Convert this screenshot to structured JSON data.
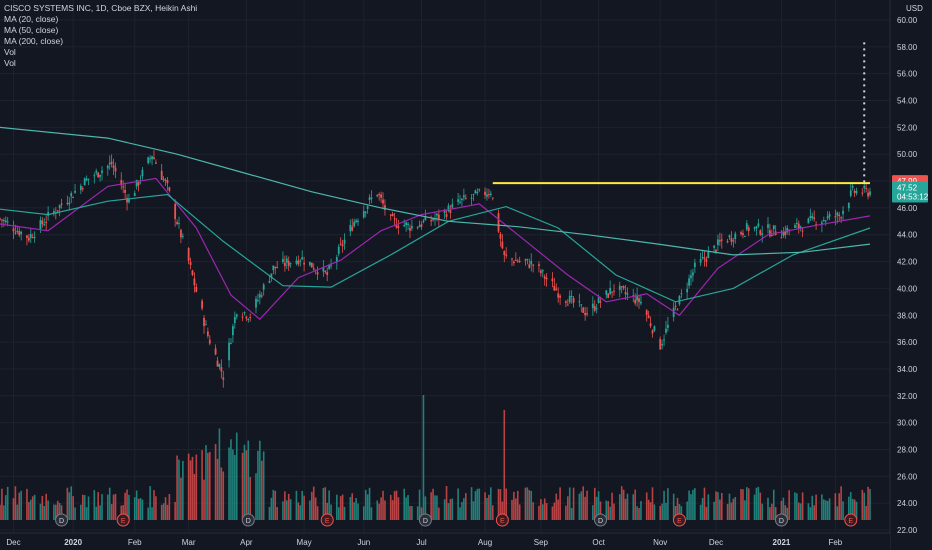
{
  "legend": {
    "symbol_line": "CISCO SYSTEMS INC, 1D, Cboe BZX, Heikin Ashi",
    "indicators": [
      "MA (20, close)",
      "MA (50, close)",
      "MA (200, close)",
      "Vol",
      "Vol"
    ]
  },
  "chart_data": {
    "type": "candlestick",
    "title": "CISCO SYSTEMS INC, 1D, Cboe BZX, Heikin Ashi",
    "currency_label": "USD",
    "ylim": [
      22,
      60
    ],
    "y_ticks": [
      "60.00",
      "58.00",
      "56.00",
      "54.00",
      "52.00",
      "50.00",
      "48.00",
      "46.00",
      "44.00",
      "42.00",
      "40.00",
      "38.00",
      "36.00",
      "34.00",
      "32.00",
      "30.00",
      "28.00",
      "26.00",
      "24.00",
      "22.00"
    ],
    "x_ticks": [
      "Dec",
      "2020",
      "Feb",
      "Mar",
      "Apr",
      "May",
      "Jun",
      "Jul",
      "Aug",
      "Sep",
      "Oct",
      "Nov",
      "Dec",
      "2021",
      "Feb"
    ],
    "x_range": [
      "2019-11-25",
      "2021-02-19"
    ],
    "price_path": [
      {
        "date": "2019-11-25",
        "close": 45.2
      },
      {
        "date": "2019-12-10",
        "close": 43.8
      },
      {
        "date": "2019-12-20",
        "close": 45.3
      },
      {
        "date": "2020-01-10",
        "close": 48.2
      },
      {
        "date": "2020-01-22",
        "close": 49.3
      },
      {
        "date": "2020-01-31",
        "close": 46.5
      },
      {
        "date": "2020-02-12",
        "close": 50.0
      },
      {
        "date": "2020-02-20",
        "close": 47.5
      },
      {
        "date": "2020-03-02",
        "close": 42.0
      },
      {
        "date": "2020-03-12",
        "close": 36.5
      },
      {
        "date": "2020-03-20",
        "close": 33.5
      },
      {
        "date": "2020-03-27",
        "close": 38.5
      },
      {
        "date": "2020-04-03",
        "close": 38.0
      },
      {
        "date": "2020-04-15",
        "close": 41.5
      },
      {
        "date": "2020-04-29",
        "close": 42.3
      },
      {
        "date": "2020-05-13",
        "close": 41.0
      },
      {
        "date": "2020-05-27",
        "close": 45.0
      },
      {
        "date": "2020-06-08",
        "close": 47.2
      },
      {
        "date": "2020-06-15",
        "close": 45.0
      },
      {
        "date": "2020-06-26",
        "close": 44.6
      },
      {
        "date": "2020-07-08",
        "close": 45.2
      },
      {
        "date": "2020-07-22",
        "close": 46.5
      },
      {
        "date": "2020-08-06",
        "close": 47.3
      },
      {
        "date": "2020-08-13",
        "close": 42.3
      },
      {
        "date": "2020-08-28",
        "close": 41.8
      },
      {
        "date": "2020-09-11",
        "close": 39.6
      },
      {
        "date": "2020-09-25",
        "close": 38.2
      },
      {
        "date": "2020-10-09",
        "close": 40.0
      },
      {
        "date": "2020-10-23",
        "close": 39.0
      },
      {
        "date": "2020-11-02",
        "close": 35.8
      },
      {
        "date": "2020-11-10",
        "close": 38.5
      },
      {
        "date": "2020-11-20",
        "close": 41.5
      },
      {
        "date": "2020-12-04",
        "close": 43.5
      },
      {
        "date": "2020-12-18",
        "close": 44.5
      },
      {
        "date": "2021-01-05",
        "close": 44.2
      },
      {
        "date": "2021-01-20",
        "close": 45.0
      },
      {
        "date": "2021-02-03",
        "close": 45.4
      },
      {
        "date": "2021-02-10",
        "close": 47.2
      }
    ],
    "moving_averages": [
      {
        "name": "MA (20, close)",
        "color": "#9c27b0",
        "points": [
          {
            "date": "2019-11-25",
            "value": 44.8
          },
          {
            "date": "2019-12-20",
            "value": 44.3
          },
          {
            "date": "2020-01-20",
            "value": 47.6
          },
          {
            "date": "2020-02-14",
            "value": 48.2
          },
          {
            "date": "2020-03-06",
            "value": 44.5
          },
          {
            "date": "2020-03-24",
            "value": 39.5
          },
          {
            "date": "2020-04-08",
            "value": 37.7
          },
          {
            "date": "2020-04-28",
            "value": 40.8
          },
          {
            "date": "2020-05-20",
            "value": 42.1
          },
          {
            "date": "2020-06-10",
            "value": 44.3
          },
          {
            "date": "2020-07-01",
            "value": 45.5
          },
          {
            "date": "2020-07-31",
            "value": 46.3
          },
          {
            "date": "2020-08-20",
            "value": 44.0
          },
          {
            "date": "2020-09-15",
            "value": 41.0
          },
          {
            "date": "2020-10-05",
            "value": 39.0
          },
          {
            "date": "2020-10-26",
            "value": 39.6
          },
          {
            "date": "2020-11-12",
            "value": 38.0
          },
          {
            "date": "2020-12-02",
            "value": 41.5
          },
          {
            "date": "2020-12-28",
            "value": 44.0
          },
          {
            "date": "2021-01-22",
            "value": 44.7
          },
          {
            "date": "2021-02-19",
            "value": 45.4
          }
        ]
      },
      {
        "name": "MA (50, close)",
        "color": "#26a69a",
        "points": [
          {
            "date": "2019-11-25",
            "value": 45.9
          },
          {
            "date": "2019-12-20",
            "value": 45.5
          },
          {
            "date": "2020-01-20",
            "value": 46.5
          },
          {
            "date": "2020-02-20",
            "value": 47.0
          },
          {
            "date": "2020-03-20",
            "value": 43.5
          },
          {
            "date": "2020-04-20",
            "value": 40.2
          },
          {
            "date": "2020-05-15",
            "value": 40.1
          },
          {
            "date": "2020-06-15",
            "value": 42.5
          },
          {
            "date": "2020-07-15",
            "value": 45.0
          },
          {
            "date": "2020-08-14",
            "value": 46.1
          },
          {
            "date": "2020-09-10",
            "value": 44.5
          },
          {
            "date": "2020-10-10",
            "value": 41.0
          },
          {
            "date": "2020-11-10",
            "value": 39.0
          },
          {
            "date": "2020-12-10",
            "value": 40.0
          },
          {
            "date": "2021-01-10",
            "value": 42.5
          },
          {
            "date": "2021-02-19",
            "value": 44.5
          }
        ]
      },
      {
        "name": "MA (200, close)",
        "color": "#4db6ac",
        "points": [
          {
            "date": "2019-11-25",
            "value": 52.0
          },
          {
            "date": "2020-01-20",
            "value": 51.2
          },
          {
            "date": "2020-02-25",
            "value": 50.0
          },
          {
            "date": "2020-03-31",
            "value": 48.6
          },
          {
            "date": "2020-05-05",
            "value": 47.2
          },
          {
            "date": "2020-06-10",
            "value": 46.0
          },
          {
            "date": "2020-07-15",
            "value": 45.0
          },
          {
            "date": "2020-08-20",
            "value": 44.6
          },
          {
            "date": "2020-09-25",
            "value": 44.0
          },
          {
            "date": "2020-11-01",
            "value": 43.3
          },
          {
            "date": "2020-12-10",
            "value": 42.5
          },
          {
            "date": "2021-01-15",
            "value": 42.7
          },
          {
            "date": "2021-02-19",
            "value": 43.3
          }
        ]
      }
    ],
    "volume": {
      "big_green_bar_date": "2020-07-02",
      "big_red_bar_date": "2020-08-13"
    },
    "horizontal_line": {
      "value": 47.85,
      "from": "2020-08-07",
      "to": "2021-02-19",
      "color": "#ffeb3b"
    },
    "projection_dotted_line": {
      "date": "2021-02-16",
      "from": 47.9,
      "to": 58.5,
      "color": "#d1d4dc"
    },
    "event_markers": [
      {
        "date": "2019-12-27",
        "label": "D"
      },
      {
        "date": "2020-01-28",
        "label": "E"
      },
      {
        "date": "2020-04-02",
        "label": "D"
      },
      {
        "date": "2020-05-13",
        "label": "E"
      },
      {
        "date": "2020-07-03",
        "label": "D"
      },
      {
        "date": "2020-08-12",
        "label": "E"
      },
      {
        "date": "2020-10-02",
        "label": "D"
      },
      {
        "date": "2020-11-12",
        "label": "E"
      },
      {
        "date": "2021-01-04",
        "label": "D"
      },
      {
        "date": "2021-02-09",
        "label": "E"
      }
    ],
    "price_labels": [
      {
        "text": "47.99",
        "value": 47.99,
        "color": "#ef5350"
      },
      {
        "text": "47.52",
        "value": 47.52,
        "color": "#26a69a"
      },
      {
        "text": "04:53:12",
        "value": 46.85,
        "color": "#26a69a"
      }
    ],
    "colors": {
      "up": "#26a69a",
      "down": "#ef5350",
      "background": "#131722",
      "grid": "#1e222d",
      "text": "#d1d4dc"
    }
  }
}
